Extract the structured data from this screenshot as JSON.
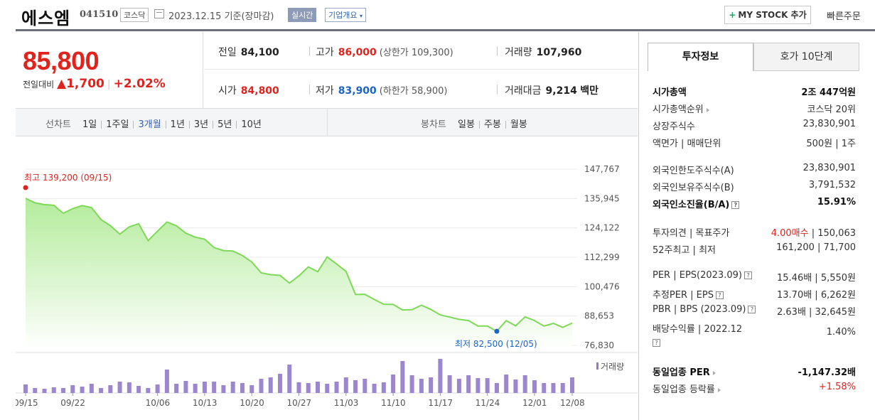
{
  "header": {
    "name": "에스엠",
    "code": "041510",
    "market": "코스닥",
    "date": "2023.12.15 기준(장마감)",
    "realtime": "실시간",
    "company": "기업개요",
    "mystock": "MY STOCK 추가",
    "quick_order": "빠른주문"
  },
  "price": {
    "current": "85,800",
    "change_label": "전일대비",
    "change": "▲1,700",
    "change_pct": "+2.02%"
  },
  "quote": {
    "prev_label": "전일",
    "prev": "84,100",
    "high_label": "고가",
    "high": "86,000",
    "upper": "(상한가 109,300)",
    "volume_label": "거래량",
    "volume": "107,960",
    "open_label": "시가",
    "open": "84,800",
    "low_label": "저가",
    "low": "83,900",
    "lower": "(하한가 58,900)",
    "amount_label": "거래대금",
    "amount": "9,214",
    "amount_unit": "백만"
  },
  "nav": {
    "line_label": "선차트",
    "periods": [
      "1일",
      "1주일",
      "3개월",
      "1년",
      "3년",
      "5년",
      "10년"
    ],
    "candle_label": "봉차트",
    "candles": [
      "일봉",
      "주봉",
      "월봉"
    ]
  },
  "tabs": {
    "info": "투자정보",
    "hoga": "호가 10단계"
  },
  "info": {
    "g1": [
      {
        "k": "시가총액",
        "v": "2조 447억원"
      },
      {
        "k": "시가총액순위",
        "v": "코스닥 20위"
      },
      {
        "k": "상장주식수",
        "v": "23,830,901"
      },
      {
        "k": "액면가 | 매매단위",
        "v": "500원 | 1주"
      }
    ],
    "g2": [
      {
        "k": "외국인한도주식수(A)",
        "v": "23,830,901"
      },
      {
        "k": "외국인보유주식수(B)",
        "v": "3,791,532"
      },
      {
        "k": "외국인소진율(B/A)",
        "v": "15.91%"
      }
    ],
    "g3": [
      {
        "k": "투자의견 | 목표주가",
        "v1": "4.00매수",
        "v2": " | 150,063"
      },
      {
        "k": "52주최고 | 최저",
        "v": "161,200 | 71,700"
      }
    ],
    "g4": [
      {
        "k": "PER | EPS(2023.09)",
        "v": "15.46배 | 5,550원"
      },
      {
        "k": "추정PER | EPS",
        "v": "13.70배 | 6,262원"
      },
      {
        "k": "PBR | BPS (2023.09)",
        "v": "2.63배 | 32,645원"
      },
      {
        "k": "배당수익률 | 2022.12",
        "v": "1.40%"
      }
    ],
    "g5": [
      {
        "k": "동일업종 PER",
        "v": "-1,147.32배"
      },
      {
        "k": "동일업종 등락률",
        "v": "+1.58%"
      }
    ]
  },
  "chart_data": {
    "type": "area",
    "y_ticks": [
      "147,767",
      "135,945",
      "124,122",
      "112,299",
      "100,476",
      "88,653",
      "76,830"
    ],
    "ylim": [
      76830,
      147767
    ],
    "x_ticks": [
      "09/15",
      "09/22",
      "10/06",
      "10/13",
      "10/20",
      "10/27",
      "11/03",
      "11/10",
      "11/17",
      "11/24",
      "12/01",
      "12/08"
    ],
    "high_label": "최고 139,200 (09/15)",
    "low_label": "최저 82,500 (12/05)",
    "volume_label": "거래량",
    "series": [
      {
        "values": [
          136000,
          134200,
          133500,
          133200,
          130000,
          131900,
          133100,
          132300,
          127500,
          125000,
          121600,
          124500,
          125800,
          119000,
          122800,
          126500,
          125000,
          122000,
          120400,
          119600,
          116200,
          115000,
          114800,
          113000,
          110400,
          106000,
          105300,
          105000,
          101900,
          104800,
          108400,
          106500,
          112400,
          109600,
          106600,
          97300,
          97400,
          95300,
          93400,
          93300,
          91100,
          91200,
          93000,
          91300,
          89100,
          88200,
          87300,
          86800,
          84600,
          84600,
          82500,
          86800,
          84700,
          88300,
          86800,
          84600,
          85700,
          84100,
          85800
        ]
      },
      {
        "values": [
          12,
          7,
          6,
          8,
          7,
          11,
          9,
          13,
          7,
          11,
          16,
          15,
          10,
          7,
          12,
          33,
          13,
          17,
          13,
          16,
          16,
          11,
          16,
          14,
          11,
          20,
          22,
          27,
          40,
          15,
          14,
          16,
          13,
          16,
          22,
          18,
          20,
          13,
          15,
          26,
          45,
          25,
          20,
          22,
          48,
          25,
          20,
          25,
          21,
          21,
          14,
          26,
          19,
          25,
          18,
          14,
          14,
          14,
          22
        ]
      }
    ]
  }
}
